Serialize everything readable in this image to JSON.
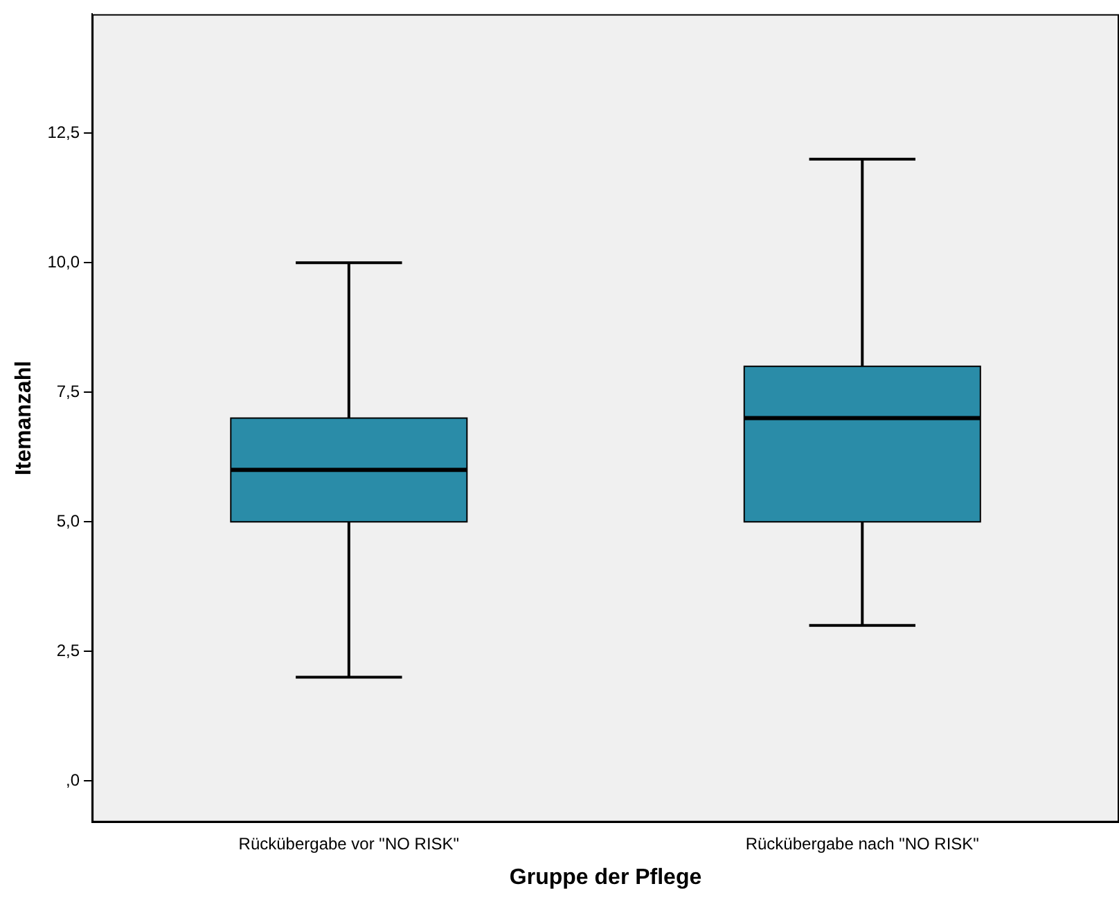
{
  "chart_data": {
    "type": "box",
    "xlabel": "Gruppe der Pflege",
    "ylabel": "Itemanzahl",
    "categories": [
      "Rückübergabe vor \"NO RISK\"",
      "Rückübergabe nach \"NO RISK\""
    ],
    "boxes": [
      {
        "low": 2,
        "q1": 5,
        "median": 6,
        "q3": 7,
        "high": 10
      },
      {
        "low": 3,
        "q1": 5,
        "median": 7,
        "q3": 8,
        "high": 12
      }
    ],
    "color": "#2a8ca8",
    "ylim": [
      -0.8,
      14.8
    ],
    "yticks": [
      {
        "value": 0,
        "label": ",0"
      },
      {
        "value": 2.5,
        "label": "2,5"
      },
      {
        "value": 5,
        "label": "5,0"
      },
      {
        "value": 7.5,
        "label": "7,5"
      },
      {
        "value": 10,
        "label": "10,0"
      },
      {
        "value": 12.5,
        "label": "12,5"
      }
    ],
    "grid": false,
    "legend": false
  }
}
